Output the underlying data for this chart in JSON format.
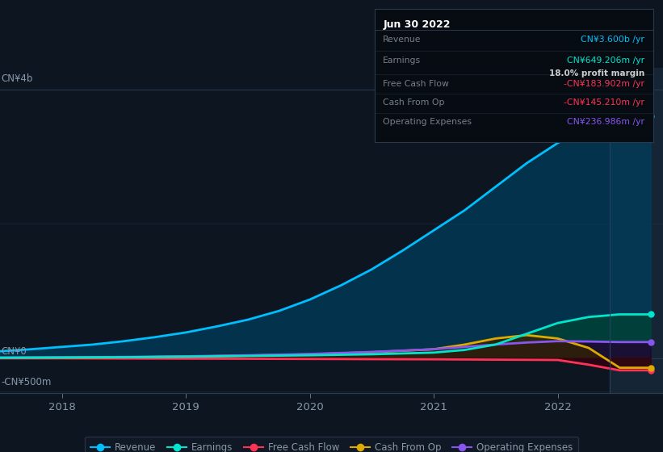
{
  "background_color": "#0d1520",
  "plot_bg_color": "#0d1520",
  "grid_color": "#1e3048",
  "text_color": "#8899aa",
  "title_color": "#ffffff",
  "ylabel_top": "CN¥4b",
  "ylabel_zero": "CN¥0",
  "ylabel_bottom": "-CN¥500m",
  "x_ticks": [
    2018,
    2019,
    2020,
    2021,
    2022
  ],
  "highlight_x": 2022.42,
  "series": {
    "revenue": {
      "color": "#00bfff",
      "fill_color": "#003d5c",
      "label": "Revenue",
      "data_x": [
        2017.5,
        2017.75,
        2018.0,
        2018.25,
        2018.5,
        2018.75,
        2019.0,
        2019.25,
        2019.5,
        2019.75,
        2020.0,
        2020.25,
        2020.5,
        2020.75,
        2021.0,
        2021.25,
        2021.5,
        2021.75,
        2022.0,
        2022.25,
        2022.5,
        2022.75
      ],
      "data_y": [
        100,
        130,
        165,
        200,
        250,
        310,
        380,
        470,
        570,
        700,
        870,
        1080,
        1320,
        1600,
        1900,
        2200,
        2550,
        2900,
        3200,
        3450,
        3600,
        3600
      ]
    },
    "earnings": {
      "color": "#00e5cc",
      "fill_color": "#004433",
      "label": "Earnings",
      "data_x": [
        2017.5,
        2018.0,
        2018.5,
        2019.0,
        2019.5,
        2020.0,
        2020.5,
        2021.0,
        2021.25,
        2021.5,
        2021.75,
        2022.0,
        2022.25,
        2022.5,
        2022.75
      ],
      "data_y": [
        5,
        8,
        12,
        20,
        30,
        40,
        55,
        80,
        120,
        200,
        360,
        520,
        610,
        649,
        649
      ]
    },
    "free_cash_flow": {
      "color": "#ff3355",
      "fill_color": "#330011",
      "label": "Free Cash Flow",
      "data_x": [
        2017.5,
        2018.0,
        2018.5,
        2019.0,
        2019.5,
        2020.0,
        2020.5,
        2021.0,
        2021.5,
        2022.0,
        2022.25,
        2022.5,
        2022.75
      ],
      "data_y": [
        -5,
        -5,
        -8,
        -10,
        -12,
        -15,
        -18,
        -20,
        -25,
        -30,
        -100,
        -184,
        -184
      ]
    },
    "cash_from_op": {
      "color": "#ddaa00",
      "fill_color": "#332200",
      "label": "Cash From Op",
      "data_x": [
        2017.5,
        2018.0,
        2018.5,
        2019.0,
        2019.5,
        2020.0,
        2020.5,
        2021.0,
        2021.25,
        2021.5,
        2021.75,
        2022.0,
        2022.25,
        2022.5,
        2022.75
      ],
      "data_y": [
        2,
        5,
        10,
        20,
        35,
        55,
        85,
        130,
        200,
        290,
        340,
        290,
        150,
        -145,
        -145
      ]
    },
    "operating_expenses": {
      "color": "#8855ee",
      "fill_color": "#220033",
      "label": "Operating Expenses",
      "data_x": [
        2017.5,
        2018.0,
        2018.5,
        2019.0,
        2019.5,
        2020.0,
        2020.5,
        2021.0,
        2021.25,
        2021.5,
        2021.75,
        2022.0,
        2022.25,
        2022.5,
        2022.75
      ],
      "data_y": [
        5,
        8,
        15,
        25,
        40,
        60,
        90,
        130,
        165,
        200,
        230,
        250,
        245,
        237,
        237
      ]
    }
  },
  "tooltip_box": {
    "title": "Jun 30 2022",
    "title_color": "#ffffff",
    "rows": [
      {
        "label": "Revenue",
        "value": "CN¥3.600b /yr",
        "value_color": "#00bfff",
        "extra": null
      },
      {
        "label": "Earnings",
        "value": "CN¥649.206m /yr",
        "value_color": "#00e5cc",
        "extra": "18.0% profit margin"
      },
      {
        "label": "Free Cash Flow",
        "value": "-CN¥183.902m /yr",
        "value_color": "#ff3355",
        "extra": null
      },
      {
        "label": "Cash From Op",
        "value": "-CN¥145.210m /yr",
        "value_color": "#ff3355",
        "extra": null
      },
      {
        "label": "Operating Expenses",
        "value": "CN¥236.986m /yr",
        "value_color": "#8855ee",
        "extra": null
      }
    ]
  },
  "legend_items": [
    {
      "label": "Revenue",
      "color": "#00bfff"
    },
    {
      "label": "Earnings",
      "color": "#00e5cc"
    },
    {
      "label": "Free Cash Flow",
      "color": "#ff3355"
    },
    {
      "label": "Cash From Op",
      "color": "#ddaa00"
    },
    {
      "label": "Operating Expenses",
      "color": "#8855ee"
    }
  ],
  "y_scale_max": 4000,
  "y_scale_min": -500,
  "x_min": 2017.5,
  "x_max": 2022.85
}
